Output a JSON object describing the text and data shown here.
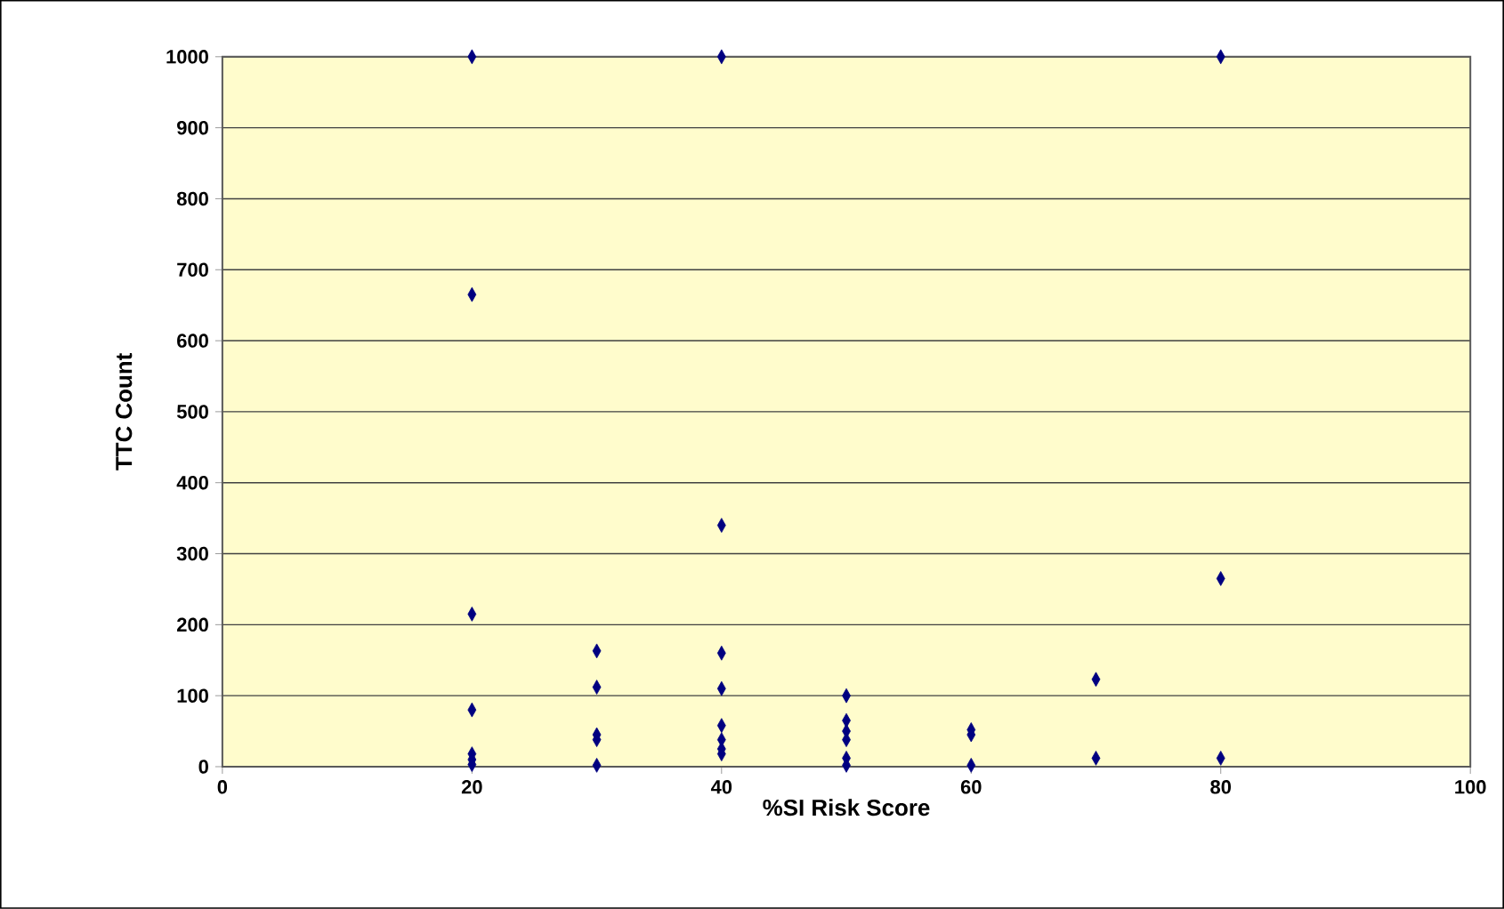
{
  "chart_data": {
    "type": "scatter",
    "xlabel": "%SI Risk Score",
    "ylabel": "TTC Count",
    "x": [
      20,
      20,
      20,
      20,
      20,
      20,
      20,
      30,
      30,
      30,
      30,
      30,
      40,
      40,
      40,
      40,
      40,
      40,
      40,
      40,
      50,
      50,
      50,
      50,
      50,
      50,
      60,
      60,
      60,
      70,
      70,
      80,
      80,
      80
    ],
    "values": [
      1000,
      665,
      215,
      80,
      18,
      10,
      3,
      163,
      112,
      45,
      38,
      2,
      1000,
      340,
      160,
      110,
      58,
      38,
      25,
      18,
      100,
      65,
      50,
      38,
      12,
      2,
      52,
      45,
      2,
      123,
      12,
      1000,
      265,
      12
    ],
    "color": "#000080",
    "marker": "diamond",
    "grid": "y",
    "xlim": [
      0,
      100
    ],
    "xticks": [
      0,
      20,
      40,
      60,
      80,
      100
    ],
    "ylim": [
      0,
      1000
    ],
    "yticks": [
      0,
      100,
      200,
      300,
      400,
      500,
      600,
      700,
      800,
      900,
      1000
    ]
  }
}
